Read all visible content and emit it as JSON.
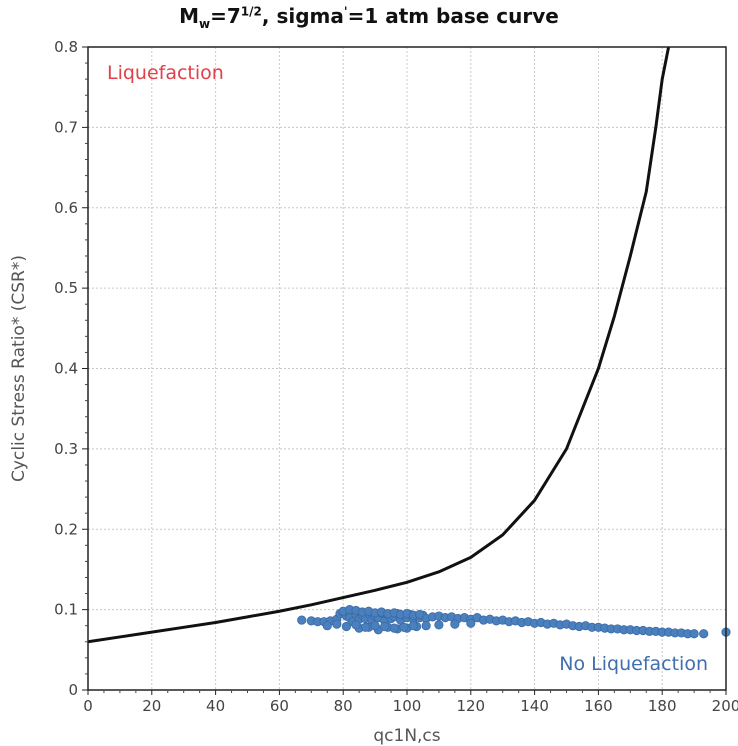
{
  "chart_data": {
    "type": "scatter",
    "title_parts": {
      "m": "M",
      "w": "w",
      "eq": "=7",
      "frac": "1/2",
      "rest": ", sigma",
      "prime": "'",
      "tail": "=1 atm base curve"
    },
    "xlabel": "qc1N,cs",
    "ylabel": "Cyclic Stress Ratio* (CSR*)",
    "xlim": [
      0,
      200
    ],
    "ylim": [
      0,
      0.8
    ],
    "xticks": [
      "0",
      "20",
      "40",
      "60",
      "80",
      "100",
      "120",
      "140",
      "160",
      "180",
      "200"
    ],
    "yticks": [
      "0",
      "0.1",
      "0.2",
      "0.3",
      "0.4",
      "0.5",
      "0.6",
      "0.7",
      "0.8"
    ],
    "grid": true,
    "annotations": {
      "liquefaction": {
        "text": "Liquefaction",
        "color": "#e0404a"
      },
      "no_liquefaction": {
        "text": "No Liquefaction",
        "color": "#3f6fae"
      }
    },
    "series": [
      {
        "kind": "line",
        "color": "#111111",
        "x": [
          0,
          10,
          20,
          30,
          40,
          50,
          60,
          70,
          80,
          90,
          100,
          110,
          120,
          130,
          140,
          150,
          160,
          165,
          170,
          175,
          178,
          180,
          182
        ],
        "y": [
          0.06,
          0.066,
          0.072,
          0.078,
          0.084,
          0.091,
          0.098,
          0.106,
          0.115,
          0.124,
          0.134,
          0.147,
          0.165,
          0.193,
          0.236,
          0.3,
          0.4,
          0.465,
          0.54,
          0.62,
          0.7,
          0.76,
          0.8
        ]
      },
      {
        "kind": "scatter",
        "color": "#4a80bd",
        "x": [
          67,
          70,
          72,
          74,
          76,
          78,
          79,
          80,
          81,
          82,
          83,
          84,
          85,
          86,
          87,
          88,
          89,
          90,
          91,
          92,
          93,
          94,
          95,
          96,
          97,
          98,
          99,
          100,
          101,
          102,
          103,
          104,
          105,
          106,
          108,
          110,
          112,
          114,
          116,
          118,
          120,
          122,
          124,
          126,
          128,
          130,
          132,
          134,
          136,
          138,
          140,
          142,
          144,
          146,
          148,
          150,
          152,
          154,
          156,
          158,
          160,
          162,
          164,
          166,
          168,
          170,
          172,
          174,
          176,
          178,
          180,
          182,
          184,
          186,
          188,
          190,
          193,
          200,
          80,
          82,
          84,
          86,
          88,
          90,
          92,
          94,
          96,
          98,
          100,
          102,
          104,
          85,
          88,
          91,
          94,
          97,
          100,
          103,
          106,
          110,
          115,
          120,
          75,
          78,
          81,
          84,
          87,
          90,
          93,
          96,
          99,
          102
        ],
        "y": [
          0.087,
          0.086,
          0.085,
          0.085,
          0.086,
          0.088,
          0.095,
          0.097,
          0.092,
          0.09,
          0.085,
          0.094,
          0.088,
          0.093,
          0.089,
          0.095,
          0.087,
          0.092,
          0.09,
          0.096,
          0.086,
          0.094,
          0.089,
          0.091,
          0.095,
          0.087,
          0.093,
          0.09,
          0.094,
          0.088,
          0.092,
          0.09,
          0.093,
          0.089,
          0.091,
          0.092,
          0.09,
          0.091,
          0.089,
          0.09,
          0.088,
          0.09,
          0.087,
          0.088,
          0.086,
          0.087,
          0.085,
          0.086,
          0.084,
          0.085,
          0.083,
          0.084,
          0.082,
          0.083,
          0.081,
          0.082,
          0.08,
          0.079,
          0.08,
          0.078,
          0.078,
          0.077,
          0.076,
          0.076,
          0.075,
          0.075,
          0.074,
          0.074,
          0.073,
          0.073,
          0.072,
          0.072,
          0.071,
          0.071,
          0.07,
          0.07,
          0.07,
          0.072,
          0.098,
          0.1,
          0.099,
          0.097,
          0.098,
          0.096,
          0.097,
          0.095,
          0.096,
          0.094,
          0.095,
          0.093,
          0.094,
          0.077,
          0.078,
          0.075,
          0.078,
          0.076,
          0.077,
          0.079,
          0.08,
          0.081,
          0.082,
          0.083,
          0.08,
          0.082,
          0.079,
          0.081,
          0.078,
          0.08,
          0.079,
          0.077,
          0.078,
          0.08
        ]
      }
    ]
  }
}
